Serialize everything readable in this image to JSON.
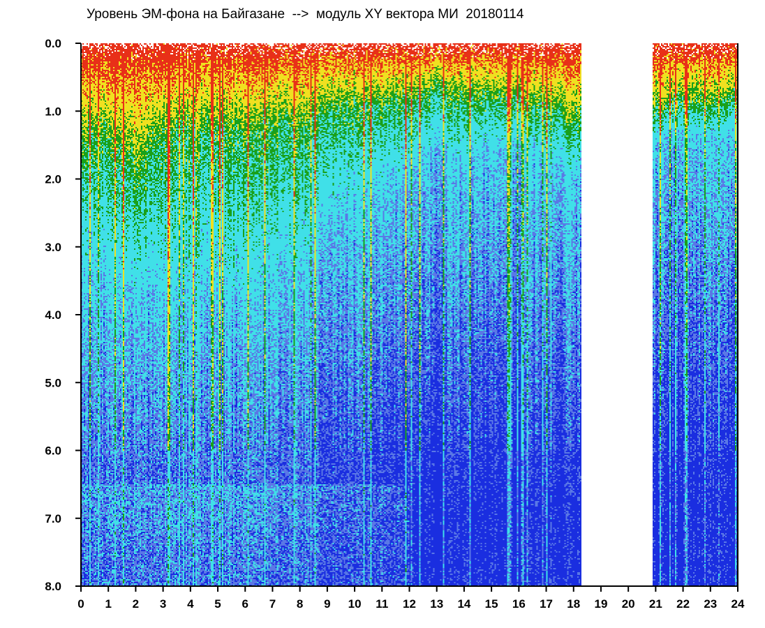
{
  "chart_data": {
    "type": "heatmap",
    "title": "Уровень ЭМ-фона на Байгазане  -->  модуль XY вектора МИ  20180114",
    "xlabel": "",
    "ylabel": "",
    "xlim": [
      0,
      24
    ],
    "ylim": [
      0.0,
      8.0
    ],
    "y_inverted": true,
    "x_ticks": [
      "0",
      "1",
      "2",
      "3",
      "4",
      "5",
      "6",
      "7",
      "8",
      "9",
      "10",
      "11",
      "12",
      "13",
      "14",
      "15",
      "16",
      "17",
      "18",
      "19",
      "20",
      "21",
      "22",
      "23",
      "24"
    ],
    "y_ticks": [
      "0.0",
      "1.0",
      "2.0",
      "3.0",
      "4.0",
      "5.0",
      "6.0",
      "7.0",
      "8.0"
    ],
    "grid": false,
    "legend": "none",
    "colors": {
      "low": "#1a2ee0",
      "mid_low": "#5a78e6",
      "mid": "#40e0e8",
      "mid_high": "#1aa01a",
      "high": "#f0e020",
      "peak": "#e83018"
    },
    "data_gaps": [
      {
        "x_start": 18.3,
        "x_end": 20.9
      }
    ],
    "profiles": {
      "hours": [
        0,
        1,
        2,
        3,
        4,
        5,
        6,
        7,
        8,
        9,
        10,
        11,
        12,
        13,
        14,
        15,
        16,
        17,
        18,
        21,
        22,
        23,
        24
      ],
      "high_level_depth": [
        1.5,
        1.3,
        2.0,
        1.3,
        1.4,
        1.3,
        1.4,
        1.2,
        1.3,
        1.1,
        0.9,
        0.9,
        0.9,
        0.7,
        0.8,
        0.8,
        0.9,
        0.9,
        1.2,
        1.0,
        0.9,
        0.9,
        0.8
      ],
      "cyan_level_depth": [
        3.6,
        3.4,
        4.0,
        3.6,
        4.2,
        3.8,
        4.0,
        3.6,
        3.6,
        3.0,
        2.4,
        2.2,
        2.0,
        1.6,
        1.8,
        1.6,
        1.6,
        1.8,
        2.0,
        1.5,
        1.4,
        1.4,
        1.4
      ]
    }
  }
}
